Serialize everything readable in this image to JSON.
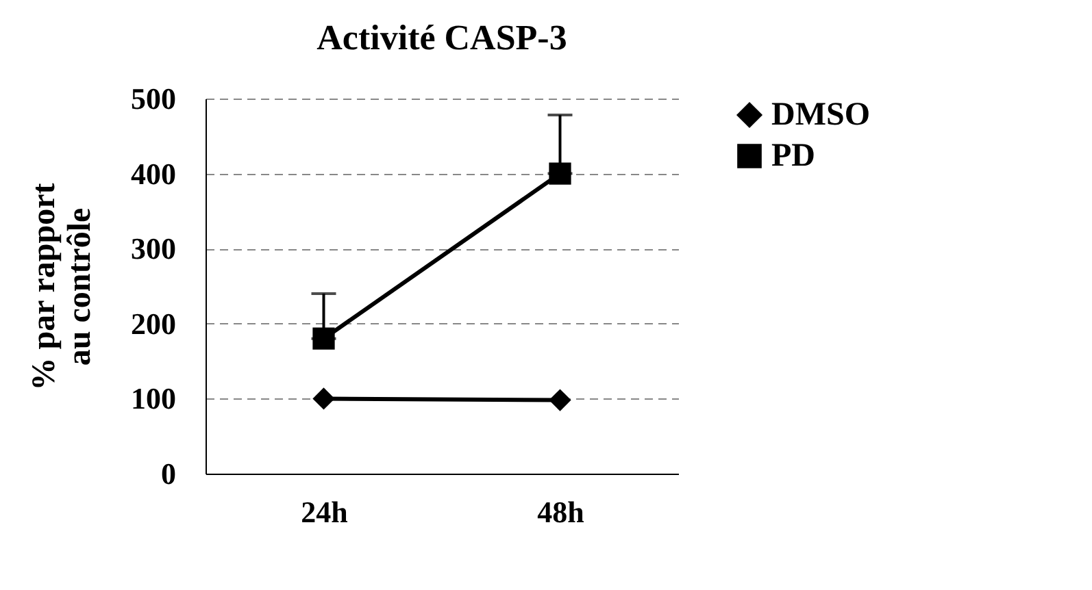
{
  "chart_data": {
    "type": "line",
    "title": "Activité CASP-3",
    "ylabel": "% par rapport\nau contrôle",
    "categories": [
      "24h",
      "48h"
    ],
    "series": [
      {
        "name": "DMSO",
        "color": "#000000",
        "values": [
          100,
          98
        ],
        "marker": "diamond"
      },
      {
        "name": "PD",
        "color": "#000000",
        "values": [
          180,
          400
        ],
        "marker": "square",
        "errors": [
          [
            180,
            240
          ],
          [
            400,
            478
          ]
        ]
      }
    ],
    "ylim": [
      0,
      500
    ],
    "yticks": [
      0,
      100,
      200,
      300,
      400,
      500
    ],
    "grid": "y",
    "legend": "right",
    "line_style": "solid"
  }
}
